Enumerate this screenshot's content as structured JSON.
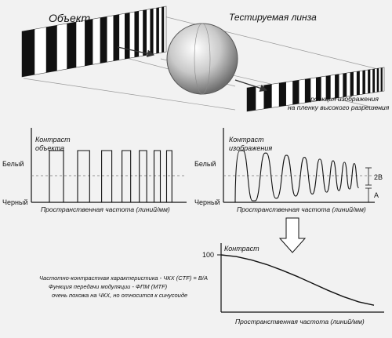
{
  "top": {
    "object_label": "Объект",
    "lens_label": "Тестируемая линза",
    "projection_line1": "Проекция изображения",
    "projection_line2": "на пленку высокого разрешения"
  },
  "left_plot": {
    "ylabel_line1": "Контраст",
    "ylabel_line2": "объекта",
    "white_label": "Белый",
    "black_label": "Черный",
    "xlabel": "Пространственная частота (линий/мм)"
  },
  "right_plot": {
    "ylabel_line1": "Контраст",
    "ylabel_line2": "изображения",
    "white_label": "Белый",
    "black_label": "Черный",
    "xlabel": "Пространственная частота (линий/мм)",
    "label_2b": "2B",
    "label_a": "A"
  },
  "mtf_plot": {
    "ylabel": "Контраст",
    "y_tick_100": "100",
    "xlabel": "Пространственная частота (линий/мм)"
  },
  "notes": {
    "line1": "Частотно-контрастная характеристика - ЧКХ (CTF) = B/A",
    "line2": "Функция передачи модуляции - ФПМ (MTF)",
    "line3": "очень похожа на ЧКХ, но относится к синусоиде"
  },
  "chart_data": {
    "type": "line",
    "ylabel": "Контраст",
    "xlabel": "Пространственная частота (линий/мм)",
    "x": [
      0,
      0.1,
      0.2,
      0.3,
      0.4,
      0.5,
      0.6,
      0.7,
      0.8,
      0.9,
      1.0
    ],
    "series": [
      {
        "values": [
          100,
          97,
          91,
          83,
          73,
          62,
          50,
          38,
          27,
          18,
          12
        ]
      }
    ],
    "ylim": [
      0,
      100
    ]
  }
}
